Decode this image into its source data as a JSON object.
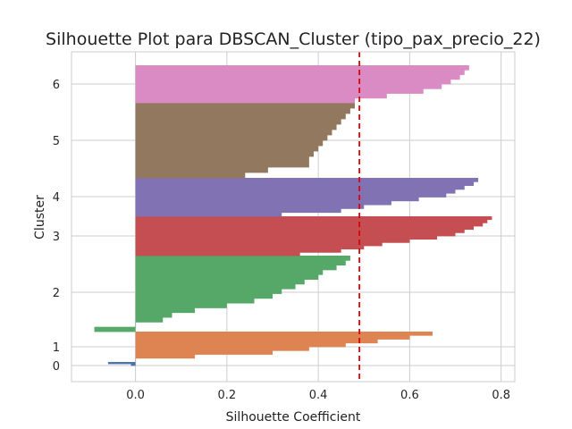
{
  "chart_data": {
    "type": "bar",
    "orientation": "horizontal",
    "title": "Silhouette Plot para DBSCAN_Cluster (tipo_pax_precio_22)",
    "xlabel": "Silhouette Coefficient",
    "ylabel": "Cluster",
    "xlim": [
      -0.14,
      0.83
    ],
    "xticks": [
      "0.0",
      "0.2",
      "0.4",
      "0.6",
      "0.8"
    ],
    "xtick_values": [
      0.0,
      0.2,
      0.4,
      0.6,
      0.8
    ],
    "yticks": [
      "0",
      "1",
      "2",
      "3",
      "4",
      "5",
      "6"
    ],
    "grid": true,
    "average_silhouette": 0.49,
    "clusters": [
      {
        "label": "0",
        "color": "#4c72b0",
        "sorted_values": [
          -0.06,
          -0.01
        ]
      },
      {
        "label": "1",
        "color": "#dd8452",
        "sorted_values": [
          0.65,
          0.6,
          0.53,
          0.46,
          0.38,
          0.3,
          0.13,
          0.0
        ]
      },
      {
        "label": "2",
        "color": "#55a868",
        "sorted_values": [
          0.47,
          0.46,
          0.44,
          0.41,
          0.4,
          0.37,
          0.35,
          0.32,
          0.3,
          0.26,
          0.2,
          0.13,
          0.08,
          0.06,
          0.0,
          -0.09
        ]
      },
      {
        "label": "3",
        "color": "#c44e52",
        "sorted_values": [
          0.78,
          0.77,
          0.76,
          0.74,
          0.72,
          0.7,
          0.66,
          0.6,
          0.54,
          0.5,
          0.45,
          0.36
        ]
      },
      {
        "label": "4",
        "color": "#8172b3",
        "sorted_values": [
          0.75,
          0.74,
          0.72,
          0.7,
          0.68,
          0.62,
          0.56,
          0.5,
          0.45,
          0.32
        ]
      },
      {
        "label": "5",
        "color": "#937860",
        "sorted_values": [
          0.48,
          0.47,
          0.46,
          0.45,
          0.44,
          0.43,
          0.42,
          0.41,
          0.4,
          0.39,
          0.38,
          0.38,
          0.29,
          0.24
        ]
      },
      {
        "label": "6",
        "color": "#da8bc3",
        "sorted_values": [
          0.73,
          0.72,
          0.71,
          0.69,
          0.67,
          0.63,
          0.55,
          0.48
        ]
      }
    ]
  }
}
